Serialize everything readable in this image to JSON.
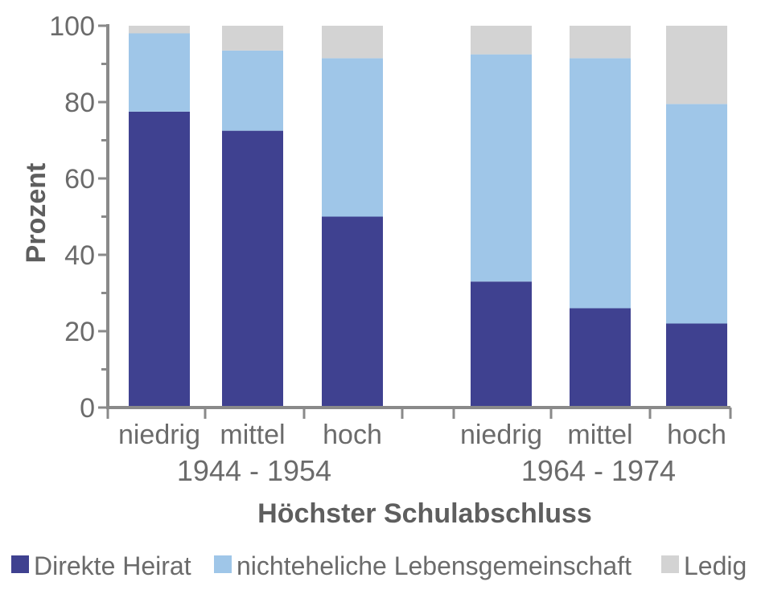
{
  "chart_data": {
    "type": "bar",
    "stacked": true,
    "title": "",
    "xlabel": "Höchster Schulabschluss",
    "ylabel": "Prozent",
    "ylim": [
      0,
      100
    ],
    "yticks": [
      "0",
      "20",
      "40",
      "60",
      "80",
      "100"
    ],
    "categories": [
      "niedrig",
      "mittel",
      "hoch",
      "niedrig",
      "mittel",
      "hoch"
    ],
    "groups": [
      {
        "label": "1944 - 1954",
        "category_indices": [
          0,
          1,
          2
        ]
      },
      {
        "label": "1964 - 1974",
        "category_indices": [
          3,
          4,
          5
        ]
      }
    ],
    "series": [
      {
        "name": "Direkte Heirat",
        "color": "#3f4190",
        "values": [
          77.5,
          72.5,
          50,
          33,
          26,
          22
        ]
      },
      {
        "name": "nichteheliche Lebensgemeinschaft",
        "color": "#9fc6e8",
        "values": [
          20.5,
          21,
          41.5,
          59.5,
          65.5,
          57.5
        ]
      },
      {
        "name": "Ledig",
        "color": "#d3d3d3",
        "values": [
          2,
          6.5,
          8.5,
          7.5,
          8.5,
          20.5
        ]
      }
    ],
    "grid": false,
    "legend_position": "bottom"
  }
}
